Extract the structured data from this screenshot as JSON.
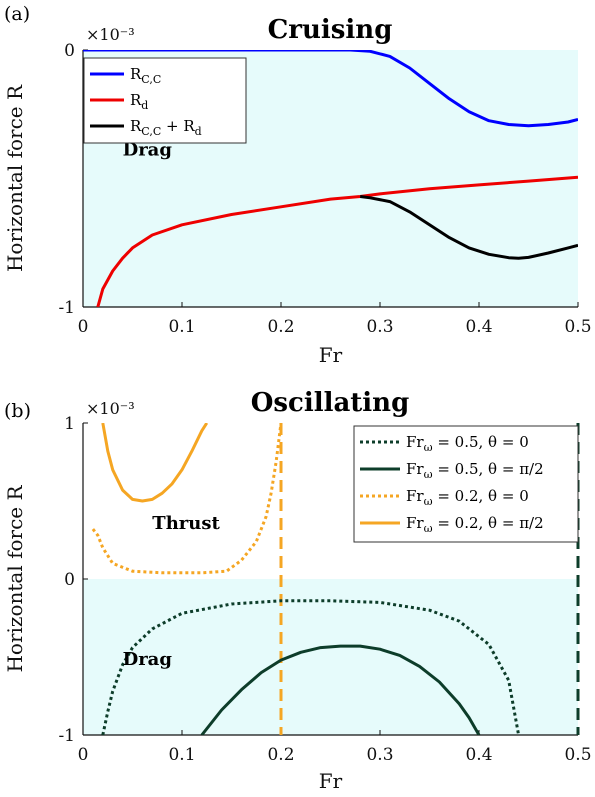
{
  "chart_data": [
    {
      "type": "line",
      "panel_label": "(a)",
      "title": "Cruising",
      "xlabel": "Fr",
      "ylabel": "Horizontal force R",
      "y_exponent_label": "×10⁻³",
      "xlim": [
        0,
        0.5
      ],
      "ylim": [
        -1,
        0
      ],
      "xticks": [
        "0",
        "0.1",
        "0.2",
        "0.3",
        "0.4",
        "0.5"
      ],
      "yticks": [
        "-1",
        "0"
      ],
      "grid": false,
      "legend_position": "top-left",
      "region_labels": [
        {
          "text": "Drag",
          "x": 0.04,
          "y": -0.41
        }
      ],
      "shaded_region": {
        "y_from": -1,
        "y_to": 0,
        "color": "#e6fbfb"
      },
      "series": [
        {
          "name": "R_{C,C}",
          "color": "#0000ff",
          "style": "solid",
          "x": [
            0.0,
            0.05,
            0.1,
            0.15,
            0.2,
            0.25,
            0.27,
            0.29,
            0.31,
            0.33,
            0.35,
            0.37,
            0.39,
            0.41,
            0.43,
            0.45,
            0.47,
            0.49,
            0.5
          ],
          "y": [
            0.0,
            0.0,
            0.0,
            0.0,
            0.0,
            0.0,
            0.0,
            -0.005,
            -0.025,
            -0.07,
            -0.13,
            -0.19,
            -0.24,
            -0.275,
            -0.29,
            -0.295,
            -0.29,
            -0.28,
            -0.27
          ]
        },
        {
          "name": "R_d",
          "color": "#ee0000",
          "style": "solid",
          "x": [
            0.015,
            0.02,
            0.03,
            0.04,
            0.05,
            0.07,
            0.1,
            0.15,
            0.2,
            0.25,
            0.28,
            0.3,
            0.35,
            0.4,
            0.45,
            0.5
          ],
          "y": [
            -1.0,
            -0.93,
            -0.86,
            -0.81,
            -0.77,
            -0.72,
            -0.68,
            -0.64,
            -0.61,
            -0.58,
            -0.57,
            -0.56,
            -0.54,
            -0.525,
            -0.51,
            -0.495
          ]
        },
        {
          "name": "R_{C,C} + R_d",
          "color": "#000000",
          "style": "solid",
          "x": [
            0.28,
            0.29,
            0.31,
            0.33,
            0.35,
            0.37,
            0.39,
            0.41,
            0.43,
            0.44,
            0.45,
            0.47,
            0.49,
            0.5
          ],
          "y": [
            -0.57,
            -0.575,
            -0.59,
            -0.63,
            -0.68,
            -0.73,
            -0.77,
            -0.795,
            -0.808,
            -0.81,
            -0.807,
            -0.79,
            -0.77,
            -0.76
          ]
        }
      ]
    },
    {
      "type": "line",
      "panel_label": "(b)",
      "title": "Oscillating",
      "xlabel": "Fr",
      "ylabel": "Horizontal force R",
      "y_exponent_label": "×10⁻³",
      "xlim": [
        0,
        0.5
      ],
      "ylim": [
        -1,
        1
      ],
      "xticks": [
        "0",
        "0.1",
        "0.2",
        "0.3",
        "0.4",
        "0.5"
      ],
      "yticks": [
        "-1",
        "0",
        "1"
      ],
      "grid": false,
      "legend_position": "top-right",
      "region_labels": [
        {
          "text": "Thrust",
          "x": 0.07,
          "y": 0.32
        },
        {
          "text": "Drag",
          "x": 0.04,
          "y": -0.55
        }
      ],
      "shaded_region": {
        "y_from": -1,
        "y_to": 0,
        "color": "#e6fbfb"
      },
      "vertical_lines": [
        {
          "x": 0.2,
          "color": "#f5a623",
          "style": "dashed"
        },
        {
          "x": 0.5,
          "color": "#0d3d2a",
          "style": "dashed"
        }
      ],
      "series": [
        {
          "name": "Fr_ω = 0.5, θ = 0",
          "color": "#0d3d2a",
          "style": "dotted",
          "x": [
            0.02,
            0.025,
            0.03,
            0.04,
            0.05,
            0.07,
            0.1,
            0.15,
            0.2,
            0.25,
            0.3,
            0.35,
            0.38,
            0.41,
            0.43,
            0.44
          ],
          "y": [
            -1.0,
            -0.85,
            -0.72,
            -0.55,
            -0.44,
            -0.32,
            -0.22,
            -0.16,
            -0.14,
            -0.14,
            -0.15,
            -0.2,
            -0.27,
            -0.42,
            -0.65,
            -1.0
          ]
        },
        {
          "name": "Fr_ω = 0.5, θ = π/2",
          "color": "#0d3d2a",
          "style": "solid",
          "x": [
            0.12,
            0.14,
            0.16,
            0.18,
            0.2,
            0.22,
            0.24,
            0.26,
            0.28,
            0.3,
            0.32,
            0.34,
            0.36,
            0.38,
            0.39,
            0.4
          ],
          "y": [
            -1.0,
            -0.84,
            -0.71,
            -0.6,
            -0.52,
            -0.47,
            -0.44,
            -0.43,
            -0.43,
            -0.45,
            -0.49,
            -0.56,
            -0.66,
            -0.8,
            -0.89,
            -1.0
          ]
        },
        {
          "name": "Fr_ω = 0.2, θ = 0",
          "color": "#f5a623",
          "style": "dotted",
          "x": [
            0.01,
            0.015,
            0.02,
            0.03,
            0.05,
            0.08,
            0.1,
            0.12,
            0.145,
            0.16,
            0.175,
            0.185,
            0.19,
            0.195,
            0.2
          ],
          "y": [
            0.32,
            0.28,
            0.2,
            0.1,
            0.05,
            0.04,
            0.04,
            0.04,
            0.05,
            0.12,
            0.24,
            0.4,
            0.55,
            0.75,
            1.0
          ]
        },
        {
          "name": "Fr_ω = 0.2, θ = π/2",
          "color": "#f5a623",
          "style": "solid",
          "x": [
            0.02,
            0.025,
            0.03,
            0.04,
            0.05,
            0.06,
            0.07,
            0.08,
            0.09,
            0.1,
            0.11,
            0.12,
            0.125
          ],
          "y": [
            1.0,
            0.82,
            0.7,
            0.57,
            0.51,
            0.5,
            0.51,
            0.55,
            0.61,
            0.7,
            0.82,
            0.95,
            1.0
          ]
        }
      ]
    }
  ]
}
